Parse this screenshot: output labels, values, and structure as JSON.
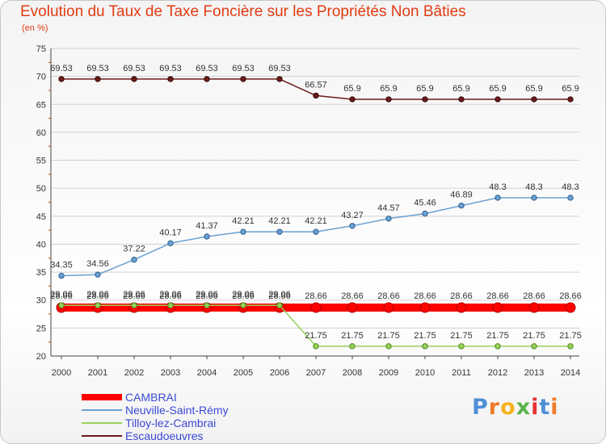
{
  "chart_data": {
    "type": "line",
    "title": "Evolution du Taux de Taxe Foncière sur les Propriétés Non Bâties",
    "subtitle": "(en %)",
    "xlabel": "",
    "ylabel": "",
    "ylim": [
      20,
      75
    ],
    "yticks": [
      20,
      25,
      30,
      35,
      40,
      45,
      50,
      55,
      60,
      65,
      70,
      75
    ],
    "categories": [
      "2000",
      "2001",
      "2002",
      "2003",
      "2004",
      "2005",
      "2006",
      "2007",
      "2008",
      "2009",
      "2010",
      "2011",
      "2012",
      "2013",
      "2014"
    ],
    "grid": "horizontal",
    "legend_position": "bottom-left",
    "series": [
      {
        "name": "CAMBRAI",
        "color": "#ff0000",
        "values": [
          28.66,
          28.66,
          28.66,
          28.66,
          28.66,
          28.66,
          28.66,
          28.66,
          28.66,
          28.66,
          28.66,
          28.66,
          28.66,
          28.66,
          28.66
        ],
        "labels": [
          "28.66",
          "28.66",
          "28.66",
          "28.66",
          "28.66",
          "28.66",
          "28.66",
          "28.66",
          "28.66",
          "28.66",
          "28.66",
          "28.66",
          "28.66",
          "28.66",
          "28.66"
        ]
      },
      {
        "name": "Neuville-Saint-Rémy",
        "color": "#6aa1d2",
        "values": [
          34.35,
          34.56,
          37.22,
          40.17,
          41.37,
          42.21,
          42.21,
          42.21,
          43.27,
          44.57,
          45.46,
          46.89,
          48.3,
          48.3,
          48.3
        ],
        "labels": [
          "34.35",
          "34.56",
          "37.22",
          "40.17",
          "41.37",
          "42.21",
          "42.21",
          "42.21",
          "43.27",
          "44.57",
          "45.46",
          "46.89",
          "48.3",
          "48.3",
          "48.3"
        ]
      },
      {
        "name": "Tilloy-lez-Cambrai",
        "color": "#99d15a",
        "values": [
          29.06,
          29.06,
          29.06,
          29.06,
          29.06,
          29.06,
          29.06,
          21.75,
          21.75,
          21.75,
          21.75,
          21.75,
          21.75,
          21.75,
          21.75
        ],
        "labels": [
          "29.06",
          "29.06",
          "29.06",
          "29.06",
          "29.06",
          "29.06",
          "29.06",
          "21.75",
          "21.75",
          "21.75",
          "21.75",
          "21.75",
          "21.75",
          "21.75",
          "21.75"
        ]
      },
      {
        "name": "Escaudoeuvres",
        "color": "#6b1a1a",
        "values": [
          69.53,
          69.53,
          69.53,
          69.53,
          69.53,
          69.53,
          69.53,
          66.57,
          65.9,
          65.9,
          65.9,
          65.9,
          65.9,
          65.9,
          65.9
        ],
        "labels": [
          "69.53",
          "69.53",
          "69.53",
          "69.53",
          "69.53",
          "69.53",
          "69.53",
          "66.57",
          "65.9",
          "65.9",
          "65.9",
          "65.9",
          "65.9",
          "65.9",
          "65.9"
        ]
      }
    ]
  },
  "logo": {
    "text": "Proxiti",
    "letters": [
      "P",
      "r",
      "o",
      "x",
      "i",
      "t",
      "i"
    ],
    "colors": [
      "#4f8fd6",
      "#f07b2a",
      "#f7b21f",
      "#59b44a",
      "#e6322f",
      "#4f8fd6",
      "#f07b2a"
    ]
  }
}
